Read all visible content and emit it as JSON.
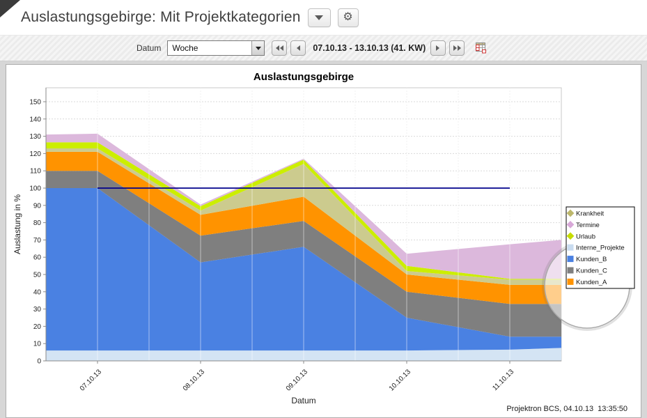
{
  "header": {
    "title": "Auslastungsgebirge: Mit Projektkategorien"
  },
  "toolbar": {
    "datum_label": "Datum",
    "period_value": "Woche",
    "date_range": "07.10.13 - 13.10.13 (41. KW)"
  },
  "footer": {
    "credit": "Projektron BCS, 04.10.13  13:35:50"
  },
  "chart_data": {
    "type": "area",
    "stacked": true,
    "title": "Auslastungsgebirge",
    "xlabel": "Datum",
    "ylabel": "Auslastung in %",
    "ylim": [
      0,
      158
    ],
    "yticks": [
      0,
      10,
      20,
      30,
      40,
      50,
      60,
      70,
      80,
      90,
      100,
      110,
      120,
      130,
      140,
      150
    ],
    "categories": [
      "07.10.13",
      "08.10.13",
      "09.10.13",
      "10.10.13",
      "11.10.13"
    ],
    "x_halfsteps": [
      0,
      1,
      3,
      5,
      7,
      9,
      10
    ],
    "tick_positions": [
      1,
      3,
      5,
      7,
      9
    ],
    "grid_positions": [
      1,
      2,
      3,
      4,
      5,
      6,
      7,
      8,
      9
    ],
    "series": [
      {
        "name": "Interne_Projekte",
        "color": "#D4E4F4",
        "values": [
          6,
          6,
          6,
          6,
          6,
          6.5,
          7.5
        ]
      },
      {
        "name": "Kunden_B",
        "color": "#4A81E2",
        "values": [
          94,
          94,
          51,
          60,
          19,
          7.5,
          6.5
        ]
      },
      {
        "name": "Kunden_C",
        "color": "#7F7F7F",
        "values": [
          10,
          10,
          15.5,
          15,
          15,
          19,
          19
        ]
      },
      {
        "name": "Kunden_A",
        "color": "#FF9300",
        "values": [
          11,
          11,
          12,
          14,
          10,
          11,
          11
        ]
      },
      {
        "name": "Krankheit",
        "color": "#CCCB8E",
        "values": [
          2,
          2,
          2.5,
          19,
          2,
          3,
          3
        ]
      },
      {
        "name": "Urlaub",
        "color": "#CCEE00",
        "values": [
          3.5,
          3.5,
          2.5,
          2.5,
          3,
          0.5,
          0.5
        ]
      },
      {
        "name": "Termine",
        "color": "#DCB8DC",
        "values": [
          4.5,
          5,
          1,
          0.5,
          7,
          20,
          22.5
        ]
      }
    ],
    "reference_line": {
      "value": 100,
      "from": 1,
      "to": 9,
      "color": "#00008B"
    },
    "legend": {
      "position": "right",
      "entries": [
        {
          "label": "Krankheit",
          "marker": "diamond",
          "color": "#BDB76B"
        },
        {
          "label": "Termine",
          "marker": "diamond",
          "color": "#D8A8D8"
        },
        {
          "label": "Urlaub",
          "marker": "diamond",
          "color": "#C6DC00"
        },
        {
          "label": "Interne_Projekte",
          "marker": "square",
          "color": "#C9DCF0"
        },
        {
          "label": "Kunden_B",
          "marker": "square",
          "color": "#4A81E2"
        },
        {
          "label": "Kunden_C",
          "marker": "square",
          "color": "#7F7F7F"
        },
        {
          "label": "Kunden_A",
          "marker": "square",
          "color": "#FF9300"
        }
      ]
    }
  }
}
